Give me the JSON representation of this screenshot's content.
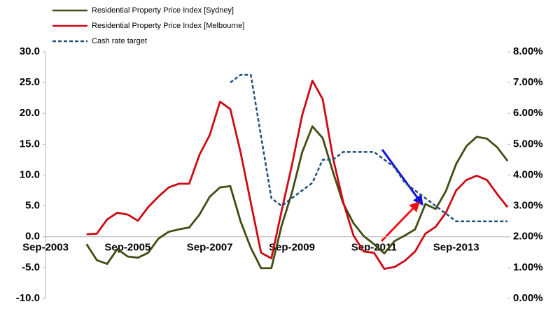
{
  "chart_data": {
    "type": "line",
    "categories": [
      "Sep-2003",
      null,
      null,
      null,
      null,
      null,
      null,
      null,
      "Sep-2005",
      null,
      null,
      null,
      null,
      null,
      null,
      null,
      "Sep-2007",
      null,
      null,
      null,
      null,
      null,
      null,
      null,
      "Sep-2009",
      null,
      null,
      null,
      null,
      null,
      null,
      null,
      "Sep-2011",
      null,
      null,
      null,
      null,
      null,
      null,
      null,
      "Sep-2013",
      null,
      null,
      null,
      null,
      null
    ],
    "ylim": [
      -10,
      30
    ],
    "yticks": [
      {
        "value": -10,
        "label": "-10.0"
      },
      {
        "value": -5,
        "label": "-5.0"
      },
      {
        "value": 0,
        "label": "0.0"
      },
      {
        "value": 5,
        "label": "5.0"
      },
      {
        "value": 10,
        "label": "10.0"
      },
      {
        "value": 15,
        "label": "15.0"
      },
      {
        "value": 20,
        "label": "20.0"
      },
      {
        "value": 25,
        "label": "25.0"
      },
      {
        "value": 30,
        "label": "30.0"
      }
    ],
    "y2lim": [
      0,
      8
    ],
    "y2ticks": [
      {
        "value": 0,
        "label": "0.00%"
      },
      {
        "value": 1,
        "label": "1.00%"
      },
      {
        "value": 2,
        "label": "2.00%"
      },
      {
        "value": 3,
        "label": "3.00%"
      },
      {
        "value": 4,
        "label": "4.00%"
      },
      {
        "value": 5,
        "label": "5.00%"
      },
      {
        "value": 6,
        "label": "6.00%"
      },
      {
        "value": 7,
        "label": "7.00%"
      },
      {
        "value": 8,
        "label": "8.00%"
      }
    ],
    "grid": false,
    "legend": "top-left",
    "series": [
      {
        "name": "Residential Property Price Index [Sydney]",
        "color": "#3f4d12",
        "dashed": false,
        "values": [
          null,
          null,
          null,
          null,
          -1.2,
          -3.8,
          -4.4,
          -2,
          -3.2,
          -3.4,
          -2.6,
          -0.3,
          0.8,
          1.2,
          1.5,
          3.6,
          6.5,
          8.0,
          8.2,
          2.5,
          -1.8,
          -5.1,
          -5.1,
          1.8,
          7.1,
          13.7,
          17.9,
          16.0,
          10.5,
          5.4,
          2.2,
          0.1,
          -1.2,
          -2.7,
          -0.7,
          0.2,
          1.2,
          5.3,
          4.5,
          7.4,
          11.8,
          14.7,
          16.2,
          15.9,
          14.5,
          12.3
        ]
      },
      {
        "name": "Residential Property Price Index [Melbourne]",
        "color": "#cc0a14",
        "dashed": false,
        "values": [
          null,
          null,
          null,
          null,
          0.4,
          0.5,
          2.8,
          3.9,
          3.6,
          2.6,
          4.8,
          6.5,
          8.0,
          8.6,
          8.6,
          13.3,
          16.5,
          21.9,
          20.7,
          13.7,
          5.5,
          -2.6,
          -3.5,
          4.2,
          11.6,
          19.7,
          25.3,
          22.3,
          12.8,
          5.6,
          0.2,
          -2.4,
          -2.6,
          -5.2,
          -4.9,
          -3.9,
          -2.4,
          0.5,
          1.6,
          3.9,
          7.5,
          9.2,
          9.9,
          9.2,
          6.9,
          4.8
        ]
      },
      {
        "name": "Cash rate target",
        "color": "#1f4e79",
        "dashed": true,
        "axis": "y2",
        "values": [
          null,
          null,
          null,
          null,
          null,
          null,
          null,
          null,
          null,
          null,
          null,
          null,
          null,
          null,
          null,
          null,
          null,
          null,
          7.0,
          7.25,
          7.25,
          5.25,
          3.25,
          3.0,
          3.25,
          3.5,
          3.75,
          4.5,
          4.5,
          4.75,
          4.75,
          4.75,
          4.75,
          4.5,
          4.25,
          3.75,
          3.5,
          3.25,
          3.0,
          2.75,
          2.5,
          2.5,
          2.5,
          2.5,
          2.5,
          2.5
        ]
      }
    ]
  }
}
